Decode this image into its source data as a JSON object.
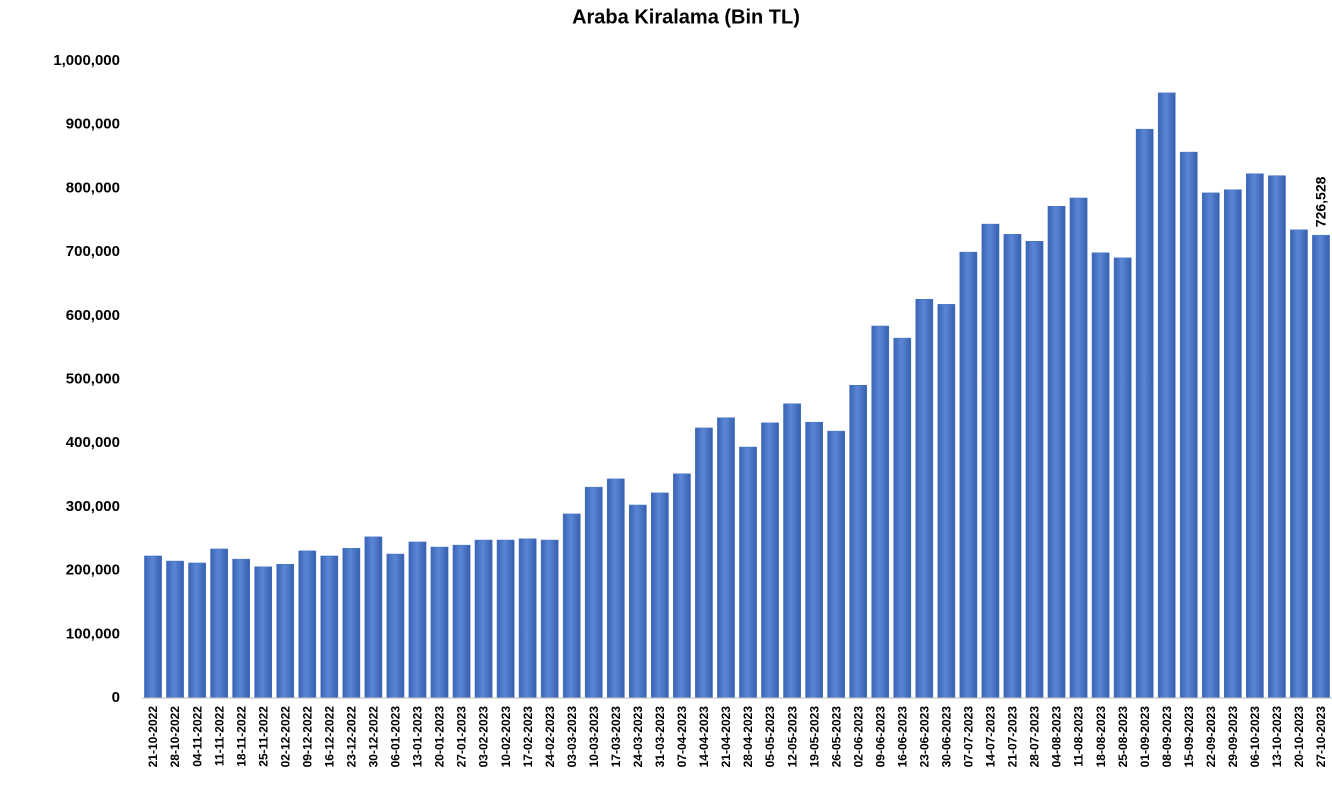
{
  "chart_data": {
    "type": "bar",
    "title": "Araba Kiralama (Bin TL)",
    "categories": [
      "21-10-2022",
      "28-10-2022",
      "04-11-2022",
      "11-11-2022",
      "18-11-2022",
      "25-11-2022",
      "02-12-2022",
      "09-12-2022",
      "16-12-2022",
      "23-12-2022",
      "30-12-2022",
      "06-01-2023",
      "13-01-2023",
      "20-01-2023",
      "27-01-2023",
      "03-02-2023",
      "10-02-2023",
      "17-02-2023",
      "24-02-2023",
      "03-03-2023",
      "10-03-2023",
      "17-03-2023",
      "24-03-2023",
      "31-03-2023",
      "07-04-2023",
      "14-04-2023",
      "21-04-2023",
      "28-04-2023",
      "05-05-2023",
      "12-05-2023",
      "19-05-2023",
      "26-05-2023",
      "02-06-2023",
      "09-06-2023",
      "16-06-2023",
      "23-06-2023",
      "30-06-2023",
      "07-07-2023",
      "14-07-2023",
      "21-07-2023",
      "28-07-2023",
      "04-08-2023",
      "11-08-2023",
      "18-08-2023",
      "25-08-2023",
      "01-09-2023",
      "08-09-2023",
      "15-09-2023",
      "22-09-2023",
      "29-09-2023",
      "06-10-2023",
      "13-10-2023",
      "20-10-2023",
      "27-10-2023"
    ],
    "values": [
      223000,
      215000,
      212000,
      234000,
      218000,
      206000,
      210000,
      231000,
      223000,
      235000,
      253000,
      226000,
      245000,
      237000,
      240000,
      248000,
      248000,
      250000,
      248000,
      289000,
      331000,
      344000,
      303000,
      322000,
      352000,
      424000,
      440000,
      394000,
      432000,
      462000,
      433000,
      419000,
      491000,
      584000,
      565000,
      626000,
      618000,
      700000,
      744000,
      728000,
      717000,
      772000,
      785000,
      699000,
      691000,
      893000,
      950000,
      857000,
      793000,
      798000,
      823000,
      820000,
      735000,
      726528
    ],
    "value_labels": [
      null,
      null,
      null,
      null,
      null,
      null,
      null,
      null,
      null,
      null,
      null,
      null,
      null,
      null,
      null,
      null,
      null,
      null,
      null,
      null,
      null,
      null,
      null,
      null,
      null,
      null,
      null,
      null,
      null,
      null,
      null,
      null,
      null,
      null,
      null,
      null,
      null,
      null,
      null,
      null,
      null,
      null,
      null,
      null,
      null,
      null,
      null,
      null,
      null,
      null,
      null,
      null,
      null,
      "726,528"
    ],
    "color": "#4472c4",
    "ylim": [
      0,
      1000000
    ],
    "yticks": [
      0,
      {
        "value": 100000,
        "label": "100,000"
      },
      {
        "value": 200000,
        "label": "200,000"
      },
      {
        "value": 300000,
        "label": "300,000"
      },
      {
        "value": 400000,
        "label": "400,000"
      },
      {
        "value": 500000,
        "label": "500,000"
      },
      {
        "value": 600000,
        "label": "600,000"
      },
      {
        "value": 700000,
        "label": "700,000"
      },
      {
        "value": 800000,
        "label": "800,000"
      },
      {
        "value": 900000,
        "label": "900,000"
      },
      {
        "value": 1000000,
        "label": "1,000,000"
      }
    ],
    "grid": false
  }
}
